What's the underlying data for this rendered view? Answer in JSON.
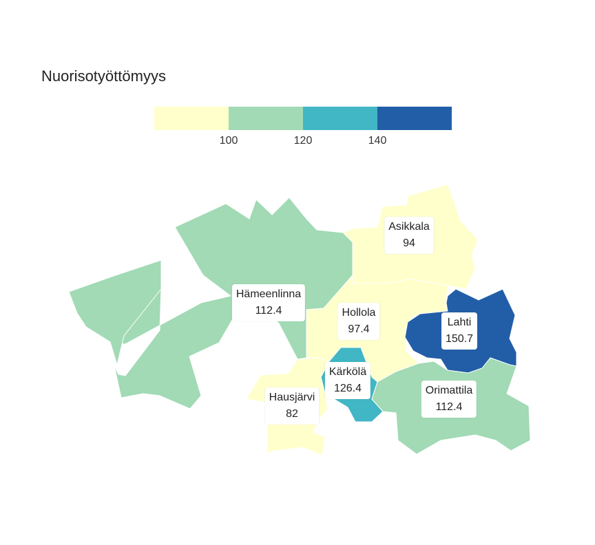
{
  "title": "Nuorisotyöttömyys",
  "legend": {
    "breaks": [
      "100",
      "120",
      "140"
    ],
    "colors": [
      "#ffffcc",
      "#a1dab4",
      "#41b6c4",
      "#225ea8"
    ]
  },
  "regions": [
    {
      "name": "Asikkala",
      "value": "94",
      "color": "#ffffcc"
    },
    {
      "name": "Hämeenlinna",
      "value": "112.4",
      "color": "#a1dab4"
    },
    {
      "name": "Hollola",
      "value": "97.4",
      "color": "#ffffcc"
    },
    {
      "name": "Lahti",
      "value": "150.7",
      "color": "#225ea8"
    },
    {
      "name": "Kärkölä",
      "value": "126.4",
      "color": "#41b6c4"
    },
    {
      "name": "Orimattila",
      "value": "112.4",
      "color": "#a1dab4"
    },
    {
      "name": "Hausjärvi",
      "value": "82",
      "color": "#ffffcc"
    }
  ]
}
